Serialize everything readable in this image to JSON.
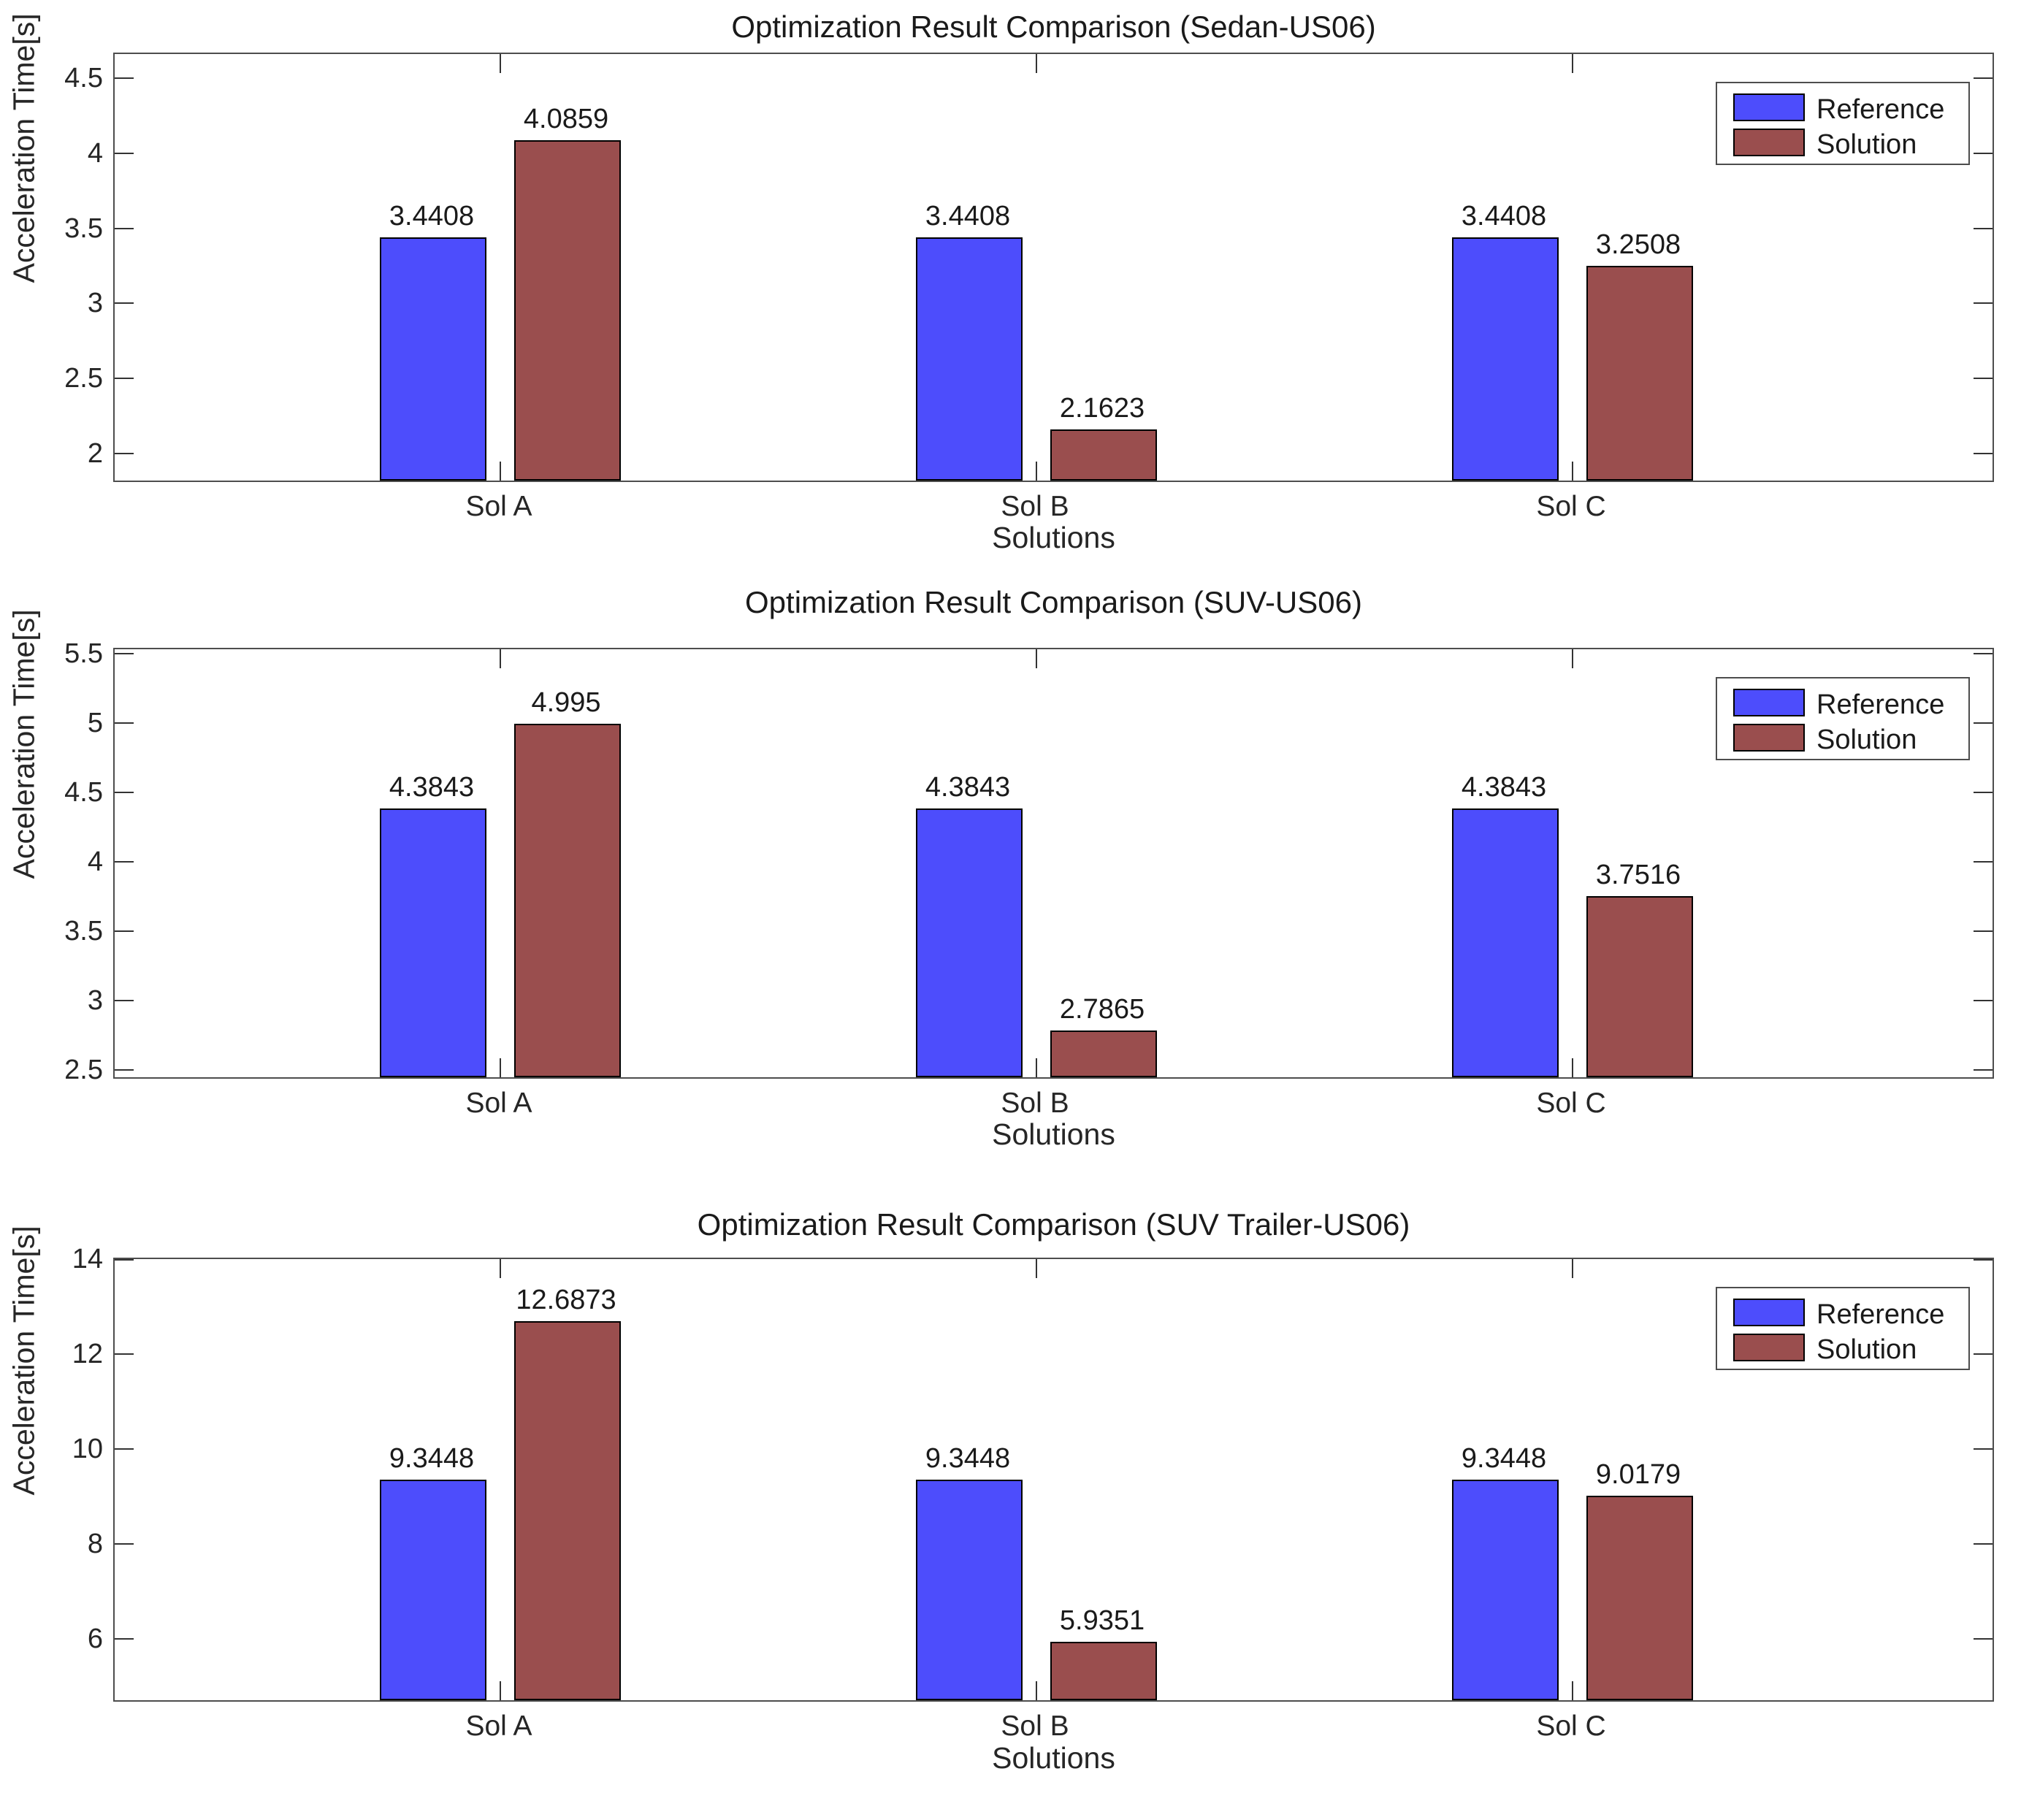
{
  "figure": {
    "background": "#ffffff",
    "reference_color": "#4D4DFC",
    "solution_color": "#9A4E4E",
    "bar_edge_color": "#000000",
    "axis_color": "#4d4d4d",
    "text_color": "#1a1a1a"
  },
  "chart_data": [
    {
      "type": "bar",
      "title": "Optimization Result Comparison (Sedan-US06)",
      "xlabel": "Solutions",
      "ylabel": "Acceleration Time[s]",
      "categories": [
        "Sol A",
        "Sol B",
        "Sol C"
      ],
      "series": [
        {
          "name": "Reference",
          "color": "#4D4DFC",
          "values": [
            3.4408,
            3.4408,
            3.4408
          ],
          "value_labels": [
            "3.4408",
            "3.4408",
            "3.4408"
          ]
        },
        {
          "name": "Solution",
          "color": "#9A4E4E",
          "values": [
            4.0859,
            2.1623,
            3.2508
          ],
          "value_labels": [
            "4.0859",
            "2.1623",
            "3.2508"
          ]
        }
      ],
      "ylim": [
        1.82,
        4.66
      ],
      "yticks": [
        2,
        2.5,
        3,
        3.5,
        4,
        4.5
      ],
      "ytick_labels": [
        "2",
        "2.5",
        "3",
        "3.5",
        "4",
        "4.5"
      ],
      "grid": false,
      "legend_position": "top-right"
    },
    {
      "type": "bar",
      "title": "Optimization Result Comparison (SUV-US06)",
      "xlabel": "Solutions",
      "ylabel": "Acceleration Time[s]",
      "categories": [
        "Sol A",
        "Sol B",
        "Sol C"
      ],
      "series": [
        {
          "name": "Reference",
          "color": "#4D4DFC",
          "values": [
            4.3843,
            4.3843,
            4.3843
          ],
          "value_labels": [
            "4.3843",
            "4.3843",
            "4.3843"
          ]
        },
        {
          "name": "Solution",
          "color": "#9A4E4E",
          "values": [
            4.995,
            2.7865,
            3.7516
          ],
          "value_labels": [
            "4.995",
            "2.7865",
            "3.7516"
          ]
        }
      ],
      "ylim": [
        2.45,
        5.53
      ],
      "yticks": [
        2.5,
        3,
        3.5,
        4,
        4.5,
        5,
        5.5
      ],
      "ytick_labels": [
        "2.5",
        "3",
        "3.5",
        "4",
        "4.5",
        "5",
        "5.5"
      ],
      "grid": false,
      "legend_position": "top-right"
    },
    {
      "type": "bar",
      "title": "Optimization Result Comparison (SUV Trailer-US06)",
      "xlabel": "Solutions",
      "ylabel": "Acceleration Time[s]",
      "categories": [
        "Sol A",
        "Sol B",
        "Sol C"
      ],
      "series": [
        {
          "name": "Reference",
          "color": "#4D4DFC",
          "values": [
            9.3448,
            9.3448,
            9.3448
          ],
          "value_labels": [
            "9.3448",
            "9.3448",
            "9.3448"
          ]
        },
        {
          "name": "Solution",
          "color": "#9A4E4E",
          "values": [
            12.6873,
            5.9351,
            9.0179
          ],
          "value_labels": [
            "12.6873",
            "5.9351",
            "9.0179"
          ]
        }
      ],
      "ylim": [
        4.7,
        14
      ],
      "yticks": [
        6,
        8,
        10,
        12,
        14
      ],
      "ytick_labels": [
        "6",
        "8",
        "10",
        "12",
        "14"
      ],
      "grid": false,
      "legend_position": "top-right"
    }
  ]
}
